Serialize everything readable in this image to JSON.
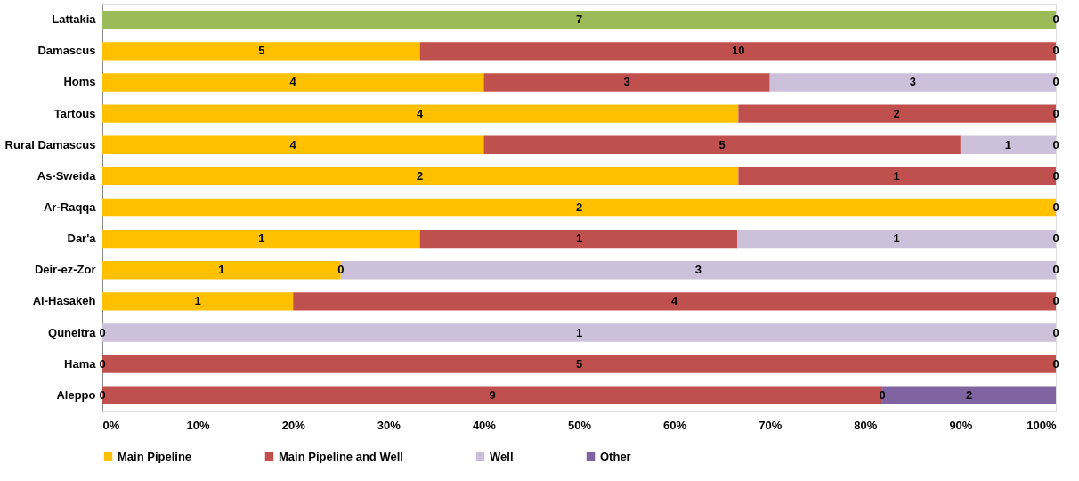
{
  "chart_data": {
    "type": "bar",
    "orientation": "horizontal",
    "stacked": true,
    "categories": [
      "Lattakia",
      "Damascus",
      "Homs",
      "Tartous",
      "Rural Damascus",
      "As-Sweida",
      "Ar-Raqqa",
      "Dar'a",
      "Deir-ez-Zor",
      "Al-Hasakeh",
      "Quneitra",
      "Hama",
      "Aleppo"
    ],
    "series": [
      {
        "name": "Main Pipeline",
        "color": "#ffc000",
        "colors": [
          "#9bbb59",
          "#ffc000",
          "#ffc000",
          "#ffc000",
          "#ffc000",
          "#ffc000",
          "#ffc000",
          "#ffc000",
          "#ffc000",
          "#ffc000",
          "#ffc000",
          "#ffc000",
          "#ffc000"
        ],
        "values": [
          100,
          33.3,
          40,
          66.7,
          40,
          66.7,
          100,
          33.3,
          25,
          20,
          0,
          0,
          0
        ]
      },
      {
        "name": "Main Pipeline and Well",
        "color": "#c0504d",
        "values": [
          0,
          66.7,
          30,
          33.3,
          50,
          33.3,
          0,
          33.3,
          0,
          80,
          0,
          100,
          81.8
        ]
      },
      {
        "name": "Well",
        "color": "#ccc0da",
        "values": [
          0,
          0,
          30,
          0,
          10,
          0,
          0,
          33.4,
          75,
          0,
          100,
          0,
          0
        ]
      },
      {
        "name": "Other",
        "color": "#8064a2",
        "values": [
          0,
          0,
          0,
          0,
          0,
          0,
          0,
          0,
          0,
          0,
          0,
          0,
          18.2
        ]
      }
    ],
    "annotations": [
      {
        "text": "7",
        "x": 50,
        "y": "Lattakia"
      },
      {
        "text": "0",
        "x": 100,
        "y": "Lattakia"
      },
      {
        "text": "5",
        "x": 16.7,
        "y": "Damascus"
      },
      {
        "text": "10",
        "x": 66.7,
        "y": "Damascus"
      },
      {
        "text": "0",
        "x": 100,
        "y": "Damascus"
      },
      {
        "text": "4",
        "x": 20,
        "y": "Homs"
      },
      {
        "text": "3",
        "x": 55,
        "y": "Homs"
      },
      {
        "text": "3",
        "x": 85,
        "y": "Homs"
      },
      {
        "text": "0",
        "x": 100,
        "y": "Homs"
      },
      {
        "text": "4",
        "x": 33.3,
        "y": "Tartous"
      },
      {
        "text": "2",
        "x": 83.3,
        "y": "Tartous"
      },
      {
        "text": "0",
        "x": 100,
        "y": "Tartous"
      },
      {
        "text": "4",
        "x": 20,
        "y": "Rural Damascus"
      },
      {
        "text": "5",
        "x": 65,
        "y": "Rural Damascus"
      },
      {
        "text": "1",
        "x": 95,
        "y": "Rural Damascus"
      },
      {
        "text": "0",
        "x": 100,
        "y": "Rural Damascus"
      },
      {
        "text": "2",
        "x": 33.3,
        "y": "As-Sweida"
      },
      {
        "text": "1",
        "x": 83.3,
        "y": "As-Sweida"
      },
      {
        "text": "0",
        "x": 100,
        "y": "As-Sweida"
      },
      {
        "text": "2",
        "x": 50,
        "y": "Ar-Raqqa"
      },
      {
        "text": "0",
        "x": 100,
        "y": "Ar-Raqqa"
      },
      {
        "text": "1",
        "x": 16.7,
        "y": "Dar'a"
      },
      {
        "text": "1",
        "x": 50,
        "y": "Dar'a"
      },
      {
        "text": "1",
        "x": 83.3,
        "y": "Dar'a"
      },
      {
        "text": "0",
        "x": 100,
        "y": "Dar'a"
      },
      {
        "text": "1",
        "x": 12.5,
        "y": "Deir-ez-Zor"
      },
      {
        "text": "0",
        "x": 25,
        "y": "Deir-ez-Zor"
      },
      {
        "text": "3",
        "x": 62.5,
        "y": "Deir-ez-Zor"
      },
      {
        "text": "0",
        "x": 100,
        "y": "Deir-ez-Zor"
      },
      {
        "text": "1",
        "x": 10,
        "y": "Al-Hasakeh"
      },
      {
        "text": "4",
        "x": 60,
        "y": "Al-Hasakeh"
      },
      {
        "text": "0",
        "x": 100,
        "y": "Al-Hasakeh"
      },
      {
        "text": "0",
        "x": 0,
        "y": "Quneitra"
      },
      {
        "text": "1",
        "x": 50,
        "y": "Quneitra"
      },
      {
        "text": "0",
        "x": 100,
        "y": "Quneitra"
      },
      {
        "text": "0",
        "x": 0,
        "y": "Hama"
      },
      {
        "text": "5",
        "x": 50,
        "y": "Hama"
      },
      {
        "text": "0",
        "x": 100,
        "y": "Hama"
      },
      {
        "text": "0",
        "x": 0,
        "y": "Aleppo"
      },
      {
        "text": "9",
        "x": 40.9,
        "y": "Aleppo"
      },
      {
        "text": "0",
        "x": 81.8,
        "y": "Aleppo"
      },
      {
        "text": "2",
        "x": 90.9,
        "y": "Aleppo"
      }
    ],
    "xlim": [
      0,
      100
    ],
    "xticks": [
      {
        "value": 0,
        "label": "0%"
      },
      {
        "value": 10,
        "label": "10%"
      },
      {
        "value": 20,
        "label": "20%"
      },
      {
        "value": 30,
        "label": "30%"
      },
      {
        "value": 40,
        "label": "40%"
      },
      {
        "value": 50,
        "label": "50%"
      },
      {
        "value": 60,
        "label": "60%"
      },
      {
        "value": 70,
        "label": "70%"
      },
      {
        "value": 80,
        "label": "80%"
      },
      {
        "value": 90,
        "label": "90%"
      },
      {
        "value": 100,
        "label": "100%"
      }
    ],
    "grid": false,
    "legend": "bottom"
  }
}
